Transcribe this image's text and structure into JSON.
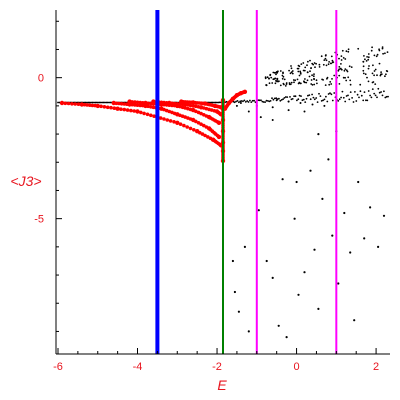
{
  "chart_data": {
    "type": "scatter",
    "xlabel": "E",
    "ylabel": "<J3>",
    "xlim": [
      -6.05,
      2.35
    ],
    "ylim": [
      -9.8,
      2.4
    ],
    "x_ticks": [
      -6,
      -4,
      -2,
      0,
      2
    ],
    "y_ticks": [
      0,
      -5
    ],
    "x_tick_labels": [
      "-6",
      "-4",
      "-2",
      "0",
      "2"
    ],
    "y_tick_labels": [
      "0",
      "-5"
    ],
    "grid": false,
    "colors": {
      "axes": "#000000",
      "tick_labels": "#e8141e",
      "highlight_points": "#ff0000",
      "points": "#000000"
    },
    "vertical_lines": [
      {
        "x": -3.5,
        "color": "#0000ff",
        "width": "thick"
      },
      {
        "x": -1.85,
        "color": "#008000",
        "width": "medium"
      },
      {
        "x": -1.0,
        "color": "#ff00ff",
        "width": "medium"
      },
      {
        "x": 1.0,
        "color": "#ff00ff",
        "width": "medium"
      }
    ],
    "red_branches": [
      {
        "x": [
          -5.9,
          -5.4,
          -5.0,
          -4.5,
          -4.0,
          -3.5,
          -3.0,
          -2.5,
          -2.1,
          -1.9
        ],
        "y": [
          -0.9,
          -0.95,
          -1.0,
          -1.1,
          -1.2,
          -1.4,
          -1.6,
          -1.9,
          -2.2,
          -2.4
        ]
      },
      {
        "x": [
          -4.6,
          -4.2,
          -3.8,
          -3.4,
          -3.0,
          -2.6,
          -2.2,
          -1.95
        ],
        "y": [
          -0.9,
          -0.95,
          -1.0,
          -1.1,
          -1.3,
          -1.5,
          -1.8,
          -2.1
        ]
      },
      {
        "x": [
          -4.2,
          -3.8,
          -3.4,
          -3.0,
          -2.6,
          -2.2,
          -1.95
        ],
        "y": [
          -0.85,
          -0.9,
          -0.95,
          -1.0,
          -1.15,
          -1.4,
          -1.6
        ]
      },
      {
        "x": [
          -3.6,
          -3.2,
          -2.8,
          -2.4,
          -2.0,
          -1.9
        ],
        "y": [
          -0.85,
          -0.9,
          -0.95,
          -1.05,
          -1.2,
          -1.3
        ]
      },
      {
        "x": [
          -2.9,
          -2.6,
          -2.3,
          -2.05,
          -1.9
        ],
        "y": [
          -0.85,
          -0.88,
          -0.92,
          -1.0,
          -1.05
        ]
      },
      {
        "x": [
          -1.85,
          -1.85,
          -1.85,
          -1.85,
          -1.85,
          -1.85,
          -1.85
        ],
        "y": [
          -0.8,
          -1.1,
          -1.5,
          -1.9,
          -2.3,
          -2.6,
          -2.95
        ]
      },
      {
        "x": [
          -1.8,
          -1.7,
          -1.6,
          -1.5,
          -1.4,
          -1.3
        ],
        "y": [
          -1.1,
          -0.9,
          -0.75,
          -0.62,
          -0.55,
          -0.5
        ]
      }
    ],
    "black_band": {
      "x_start": -6.0,
      "x_end": 2.3,
      "y_start": -0.88,
      "y_end": -0.35
    },
    "black_upper_cloud": {
      "x_start": -0.8,
      "x_end": 2.3,
      "y_low": -0.3,
      "y_high": 1.1,
      "count": 220
    },
    "black_rays": [
      {
        "x": [
          -1.5,
          -1.2,
          -0.9,
          -0.6
        ],
        "y": [
          -1.0,
          -1.2,
          -1.4,
          -1.5
        ]
      },
      {
        "x": [
          -1.4,
          -1.0,
          -0.6,
          -0.2,
          0.2
        ],
        "y": [
          -0.9,
          -1.0,
          -1.05,
          -1.15,
          -1.2
        ]
      },
      {
        "x": [
          -0.5,
          -0.2,
          0.1,
          0.4,
          0.7
        ],
        "y": [
          -0.8,
          -0.85,
          -0.9,
          -0.95,
          -1.0
        ]
      }
    ],
    "black_sparse": [
      {
        "x": -1.6,
        "y": -6.5
      },
      {
        "x": -1.55,
        "y": -7.6
      },
      {
        "x": -1.45,
        "y": -8.3
      },
      {
        "x": -1.3,
        "y": -6.0
      },
      {
        "x": -1.2,
        "y": -9.0
      },
      {
        "x": -0.95,
        "y": -4.7
      },
      {
        "x": -0.75,
        "y": -6.5
      },
      {
        "x": -0.6,
        "y": -7.1
      },
      {
        "x": -0.45,
        "y": -8.8
      },
      {
        "x": -0.25,
        "y": -9.2
      },
      {
        "x": -0.05,
        "y": -5.0
      },
      {
        "x": 0.05,
        "y": -7.7
      },
      {
        "x": 0.2,
        "y": -6.9
      },
      {
        "x": 0.35,
        "y": -3.3
      },
      {
        "x": 0.45,
        "y": -6.1
      },
      {
        "x": 0.55,
        "y": -8.2
      },
      {
        "x": 0.65,
        "y": -4.3
      },
      {
        "x": 0.8,
        "y": -2.9
      },
      {
        "x": 0.9,
        "y": -5.6
      },
      {
        "x": 1.05,
        "y": -7.3
      },
      {
        "x": 1.2,
        "y": -4.8
      },
      {
        "x": 1.35,
        "y": -6.2
      },
      {
        "x": 1.55,
        "y": -3.7
      },
      {
        "x": 1.7,
        "y": -5.7
      },
      {
        "x": 1.85,
        "y": -4.6
      },
      {
        "x": 2.05,
        "y": -6.0
      },
      {
        "x": 2.2,
        "y": -4.9
      },
      {
        "x": 1.45,
        "y": -8.6
      },
      {
        "x": 0.0,
        "y": -3.7
      },
      {
        "x": -0.35,
        "y": -3.6
      },
      {
        "x": 1.0,
        "y": -1.9
      },
      {
        "x": 0.55,
        "y": -2.0
      }
    ]
  }
}
